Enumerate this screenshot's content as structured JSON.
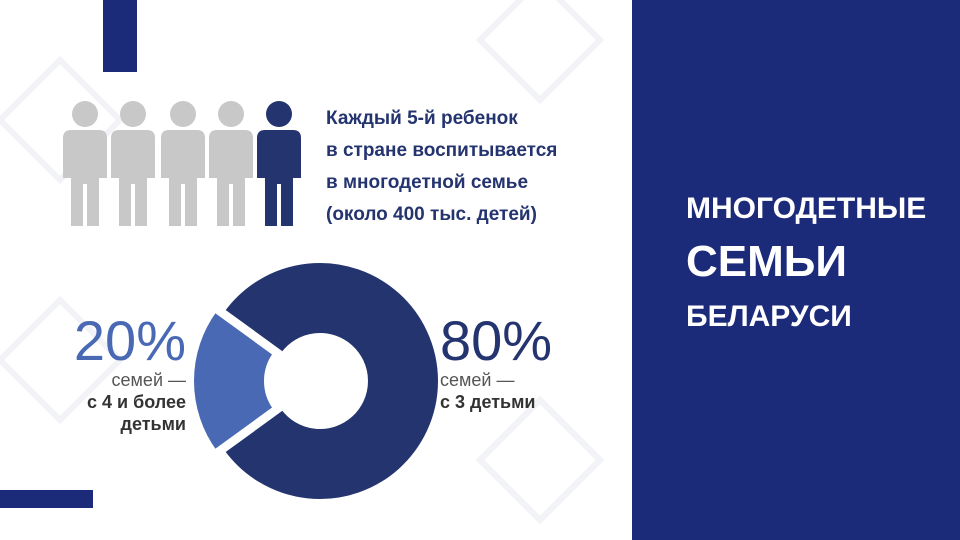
{
  "slide": {
    "title_lines": [
      "МНОГОДЕТНЫЕ",
      "СЕМЬИ",
      "БЕЛАРУСИ"
    ],
    "statement_lines": [
      "Каждый 5-й ребенок",
      "в стране воспитывается",
      "в многодетной семье",
      "(около 400 тыс. детей)"
    ]
  },
  "chart_data": {
    "type": "donut",
    "categories": [
      [
        "семей —",
        "с 4 и более",
        "детьми"
      ],
      [
        "семей —",
        "с 3 детьми"
      ]
    ],
    "values": [
      20,
      80
    ],
    "value_labels": [
      "20%",
      "80%"
    ],
    "colors": [
      "#4a69b5",
      "#24346f"
    ]
  }
}
